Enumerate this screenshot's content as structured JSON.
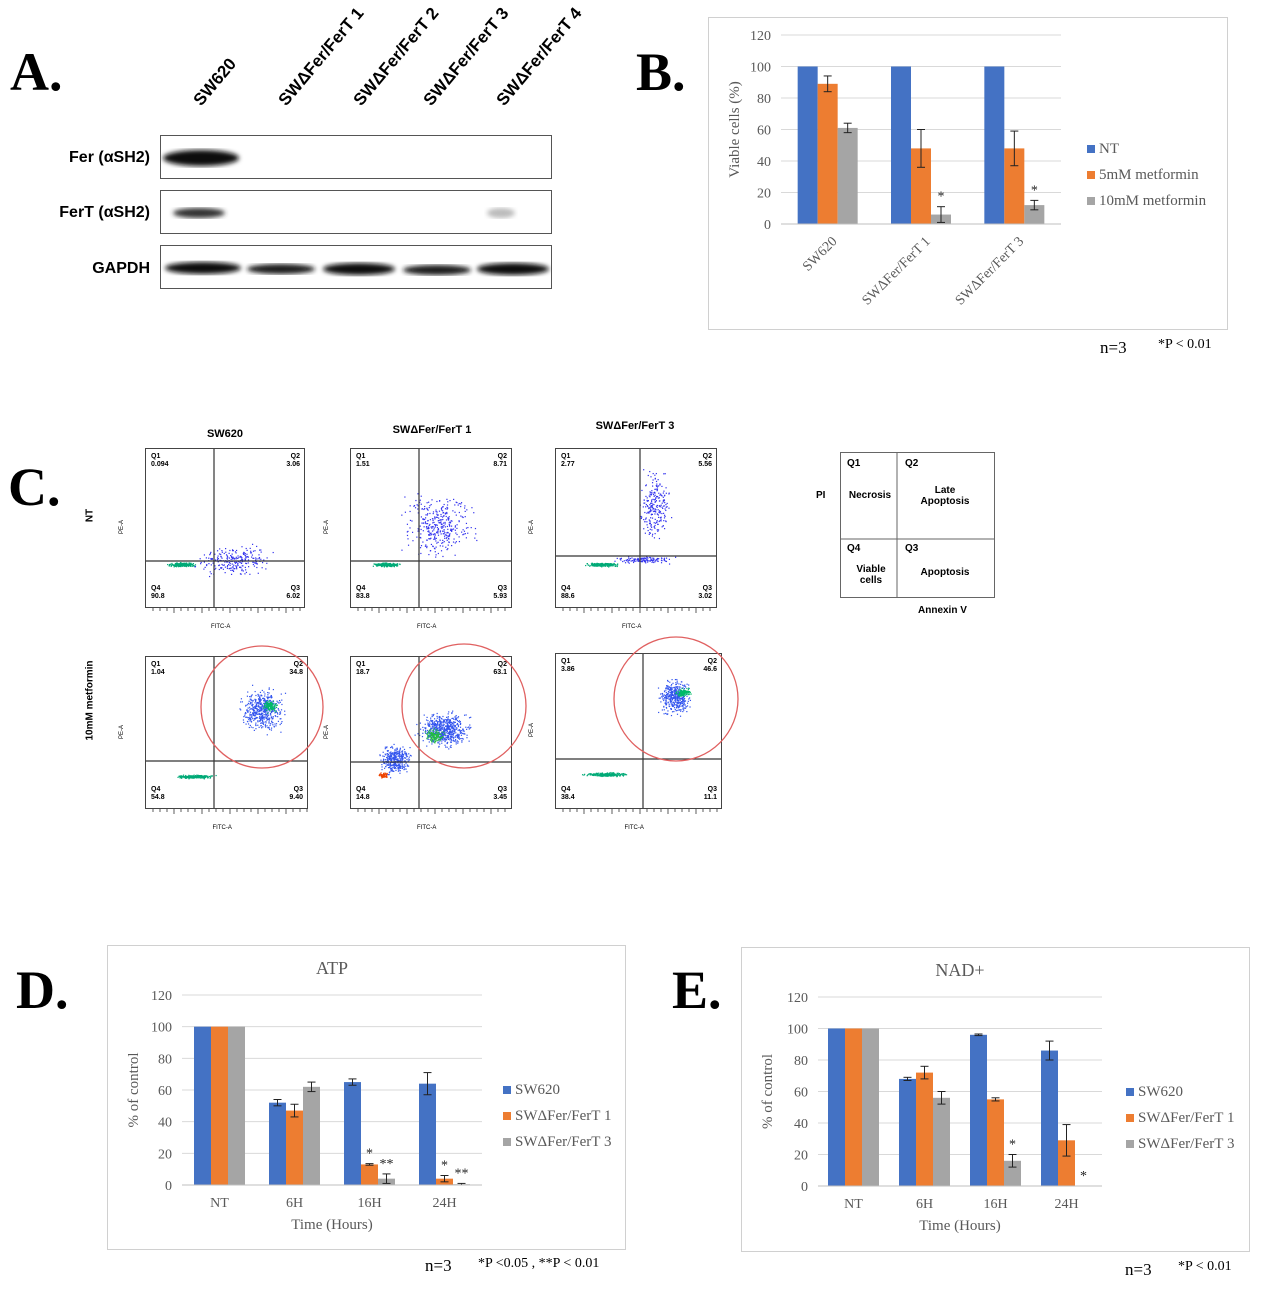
{
  "panels": {
    "a": "A.",
    "b": "B.",
    "c": "C.",
    "d": "D.",
    "e": "E."
  },
  "western": {
    "lanes": [
      "SW620",
      "SWΔFer/FerT 1",
      "SWΔFer/FerT 2",
      "SWΔFer/FerT 3",
      "SWΔFer/FerT 4"
    ],
    "rows": [
      "Fer (αSH2)",
      "FerT (αSH2)",
      "GAPDH"
    ]
  },
  "flow": {
    "columns": [
      "SW620",
      "SWΔFer/FerT 1",
      "SWΔFer/FerT 3"
    ],
    "row_labels": [
      "NT",
      "10mM metformin"
    ],
    "x_axis": "FITC-A",
    "y_axis": "PE-A",
    "plots": [
      {
        "q1_name": "Q1",
        "q1": "0.094",
        "q2_name": "Q2",
        "q2": "3.06",
        "q3_name": "Q3",
        "q3": "6.02",
        "q4_name": "Q4",
        "q4": "90.8"
      },
      {
        "q1_name": "Q1",
        "q1": "1.51",
        "q2_name": "Q2",
        "q2": "8.71",
        "q3_name": "Q3",
        "q3": "5.93",
        "q4_name": "Q4",
        "q4": "83.8"
      },
      {
        "q1_name": "Q1",
        "q1": "2.77",
        "q2_name": "Q2",
        "q2": "5.56",
        "q3_name": "Q3",
        "q3": "3.02",
        "q4_name": "Q4",
        "q4": "88.6"
      },
      {
        "q1_name": "Q1",
        "q1": "1.04",
        "q2_name": "Q2",
        "q2": "34.8",
        "q3_name": "Q3",
        "q3": "9.40",
        "q4_name": "Q4",
        "q4": "54.8"
      },
      {
        "q1_name": "Q1",
        "q1": "18.7",
        "q2_name": "Q2",
        "q2": "63.1",
        "q3_name": "Q3",
        "q3": "3.45",
        "q4_name": "Q4",
        "q4": "14.8"
      },
      {
        "q1_name": "Q1",
        "q1": "3.86",
        "q2_name": "Q2",
        "q2": "46.6",
        "q3_name": "Q3",
        "q3": "11.1",
        "q4_name": "Q4",
        "q4": "38.4"
      }
    ],
    "legend": {
      "q1": "Q1",
      "q2": "Q2",
      "q3": "Q3",
      "q4": "Q4",
      "pi": "PI",
      "necrosis": "Necrosis",
      "late_apoptosis": "Late Apoptosis",
      "viable": "Viable cells",
      "apoptosis": "Apoptosis",
      "annexin": "Annexin V"
    }
  },
  "notes": {
    "b_n": "n=3",
    "b_p": "*P < 0.01",
    "d_n": "n=3",
    "d_p": "*P <0.05 , **P < 0.01",
    "e_n": "n=3",
    "e_p": "*P < 0.01"
  },
  "colors": {
    "blue": "#4472C4",
    "orange": "#ED7D31",
    "gray": "#A5A5A5",
    "circle": "#e06060"
  },
  "chart_data": [
    {
      "id": "B",
      "type": "bar",
      "title": "",
      "ylabel": "Viable cells (%)",
      "xlabel": "",
      "ylim": [
        0,
        120
      ],
      "yticks": [
        0,
        20,
        40,
        60,
        80,
        100,
        120
      ],
      "categories": [
        "SW620",
        "SWΔFer/FerT 1",
        "SWΔFer/FerT 3"
      ],
      "series": [
        {
          "name": "NT",
          "values": [
            100,
            100,
            100
          ],
          "errors": [
            0,
            0,
            0
          ]
        },
        {
          "name": "5mM metformin",
          "values": [
            89,
            48,
            48
          ],
          "errors": [
            5,
            12,
            11
          ]
        },
        {
          "name": "10mM metformin",
          "values": [
            61,
            6,
            12
          ],
          "errors": [
            3,
            5,
            3
          ]
        }
      ],
      "annotations": [
        {
          "category": 1,
          "series": 2,
          "text": "*"
        },
        {
          "category": 2,
          "series": 2,
          "text": "*"
        }
      ]
    },
    {
      "id": "D",
      "type": "bar",
      "title": "ATP",
      "ylabel": "% of control",
      "xlabel": "Time (Hours)",
      "ylim": [
        0,
        120
      ],
      "yticks": [
        0,
        20,
        40,
        60,
        80,
        100,
        120
      ],
      "categories": [
        "NT",
        "6H",
        "16H",
        "24H"
      ],
      "series": [
        {
          "name": "SW620",
          "values": [
            100,
            52,
            65,
            64
          ],
          "errors": [
            0,
            2,
            2,
            7
          ]
        },
        {
          "name": "SWΔFer/FerT 1",
          "values": [
            100,
            47,
            13,
            4
          ],
          "errors": [
            0,
            4,
            0.5,
            2
          ]
        },
        {
          "name": "SWΔFer/FerT 3",
          "values": [
            100,
            62,
            4,
            0.5
          ],
          "errors": [
            0,
            3,
            3,
            0.5
          ]
        }
      ],
      "annotations": [
        {
          "category": 2,
          "series": 1,
          "text": "*"
        },
        {
          "category": 2,
          "series": 2,
          "text": "**"
        },
        {
          "category": 3,
          "series": 1,
          "text": "*"
        },
        {
          "category": 3,
          "series": 2,
          "text": "**"
        }
      ]
    },
    {
      "id": "E",
      "type": "bar",
      "title": "NAD+",
      "ylabel": "% of control",
      "xlabel": "Time (Hours)",
      "ylim": [
        0,
        120
      ],
      "yticks": [
        0,
        20,
        40,
        60,
        80,
        100,
        120
      ],
      "categories": [
        "NT",
        "6H",
        "16H",
        "24H"
      ],
      "series": [
        {
          "name": "SW620",
          "values": [
            100,
            68,
            96,
            86
          ],
          "errors": [
            0,
            1,
            0.5,
            6
          ]
        },
        {
          "name": "SWΔFer/FerT 1",
          "values": [
            100,
            72,
            55,
            29
          ],
          "errors": [
            0,
            4,
            1,
            10
          ]
        },
        {
          "name": "SWΔFer/FerT 3",
          "values": [
            100,
            56,
            16,
            0
          ],
          "errors": [
            0,
            4,
            4,
            0
          ]
        }
      ],
      "annotations": [
        {
          "category": 2,
          "series": 2,
          "text": "*"
        },
        {
          "category": 3,
          "series": 2,
          "text": "*"
        }
      ]
    }
  ]
}
